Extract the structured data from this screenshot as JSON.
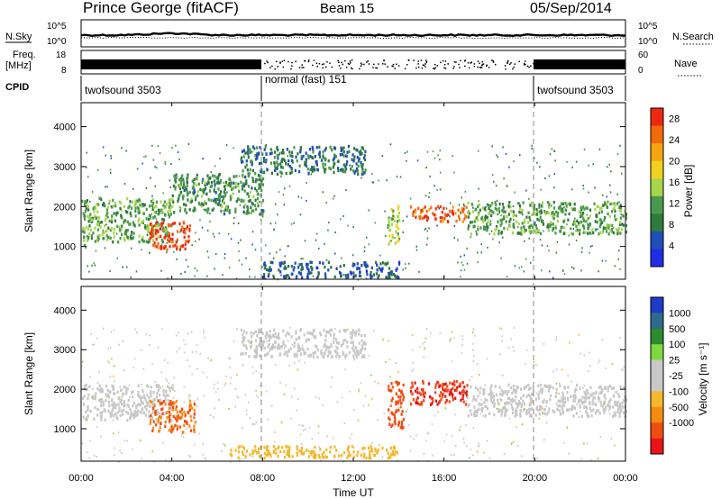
{
  "header": {
    "station": "Prince George (fitACF)",
    "beam": "Beam 15",
    "date": "05/Sep/2014"
  },
  "noise_panel": {
    "left_label": "N.Sky",
    "right_label": "N.Search",
    "tick_top": "10^5",
    "tick_bottom": "10^0",
    "scale": "log"
  },
  "freq_panel": {
    "left_label_1": "Freq.",
    "left_label_2": "[MHz]",
    "left_tick_top": "18",
    "left_tick_bottom": "8",
    "right_label": "Nave",
    "right_tick_top": "60",
    "right_tick_bottom": "0"
  },
  "cpid_panel": {
    "label": "CPID",
    "segments": [
      {
        "name": "twofsound 3503",
        "start_hour": 0,
        "end_hour": 8
      },
      {
        "name": "normal (fast) 151",
        "start_hour": 8,
        "end_hour": 20
      },
      {
        "name": "twofsound 3503",
        "start_hour": 20,
        "end_hour": 24
      }
    ]
  },
  "colors": {
    "power": [
      "#1e2ee6",
      "#1f4fb8",
      "#2f7a3c",
      "#4a9a4e",
      "#a8d64a",
      "#f0d21e",
      "#f5a50f",
      "#f26a0c",
      "#ee2810"
    ],
    "velocity": [
      "#e8141a",
      "#f04d10",
      "#f58c12",
      "#f6b72a",
      "#c8c8c8",
      "#c8c8c8",
      "#7ed840",
      "#2e8a2e",
      "#2e6a8e",
      "#1e3cc8"
    ]
  },
  "chart_data": [
    {
      "type": "heatmap",
      "panel": "power",
      "ylabel": "Slant Range [km]",
      "xlim": [
        0,
        24
      ],
      "ylim": [
        180,
        4600
      ],
      "yticks": [
        "1000",
        "2000",
        "3000",
        "4000"
      ],
      "xticks": [
        "00:00",
        "04:00",
        "08:00",
        "12:00",
        "16:00",
        "20:00",
        "00:00"
      ],
      "colorbar": {
        "label": "Power [dB]",
        "ticks": [
          "4",
          "8",
          "12",
          "16",
          "20",
          "24",
          "28"
        ],
        "range": [
          0,
          30
        ]
      },
      "echo_regions": [
        {
          "t0": 0.0,
          "t1": 4.0,
          "r0": 1100,
          "r1": 2200,
          "level": 12
        },
        {
          "t0": 3.0,
          "t1": 4.8,
          "r0": 900,
          "r1": 1600,
          "level": 28
        },
        {
          "t0": 4.0,
          "t1": 8.0,
          "r0": 1800,
          "r1": 2800,
          "level": 10
        },
        {
          "t0": 7.0,
          "t1": 12.5,
          "r0": 2800,
          "r1": 3500,
          "level": 8
        },
        {
          "t0": 13.5,
          "t1": 14.0,
          "r0": 1000,
          "r1": 2000,
          "level": 16
        },
        {
          "t0": 14.5,
          "t1": 17.0,
          "r0": 1600,
          "r1": 2000,
          "level": 26
        },
        {
          "t0": 17.0,
          "t1": 24.0,
          "r0": 1300,
          "r1": 2100,
          "level": 12
        },
        {
          "t0": 8.0,
          "t1": 14.0,
          "r0": 200,
          "r1": 600,
          "level": 6
        }
      ]
    },
    {
      "type": "heatmap",
      "panel": "velocity",
      "ylabel": "Slant Range [km]",
      "xlabel": "Time UT",
      "xlim": [
        0,
        24
      ],
      "ylim": [
        180,
        4600
      ],
      "yticks": [
        "1000",
        "2000",
        "3000",
        "4000"
      ],
      "xticks": [
        "00:00",
        "04:00",
        "08:00",
        "12:00",
        "16:00",
        "20:00",
        "00:00"
      ],
      "colorbar": {
        "label": "Velocity [m s⁻¹]",
        "ticks": [
          "1000",
          "500",
          "100",
          "25",
          "-25",
          "-100",
          "-500",
          "-1000"
        ]
      },
      "echo_regions": [
        {
          "t0": 0.0,
          "t1": 4.0,
          "r0": 1200,
          "r1": 2100,
          "level": 0
        },
        {
          "t0": 3.0,
          "t1": 5.0,
          "r0": 900,
          "r1": 1700,
          "level": -200
        },
        {
          "t0": 7.0,
          "t1": 12.5,
          "r0": 2800,
          "r1": 3500,
          "level": 0
        },
        {
          "t0": 13.5,
          "t1": 14.2,
          "r0": 1000,
          "r1": 2200,
          "level": -300
        },
        {
          "t0": 14.5,
          "t1": 17.0,
          "r0": 1600,
          "r1": 2200,
          "level": -500
        },
        {
          "t0": 17.0,
          "t1": 24.0,
          "r0": 1300,
          "r1": 2100,
          "level": 0
        },
        {
          "t0": 6.5,
          "t1": 14.0,
          "r0": 250,
          "r1": 550,
          "level": -80
        }
      ]
    }
  ],
  "xlabel": "Time UT"
}
